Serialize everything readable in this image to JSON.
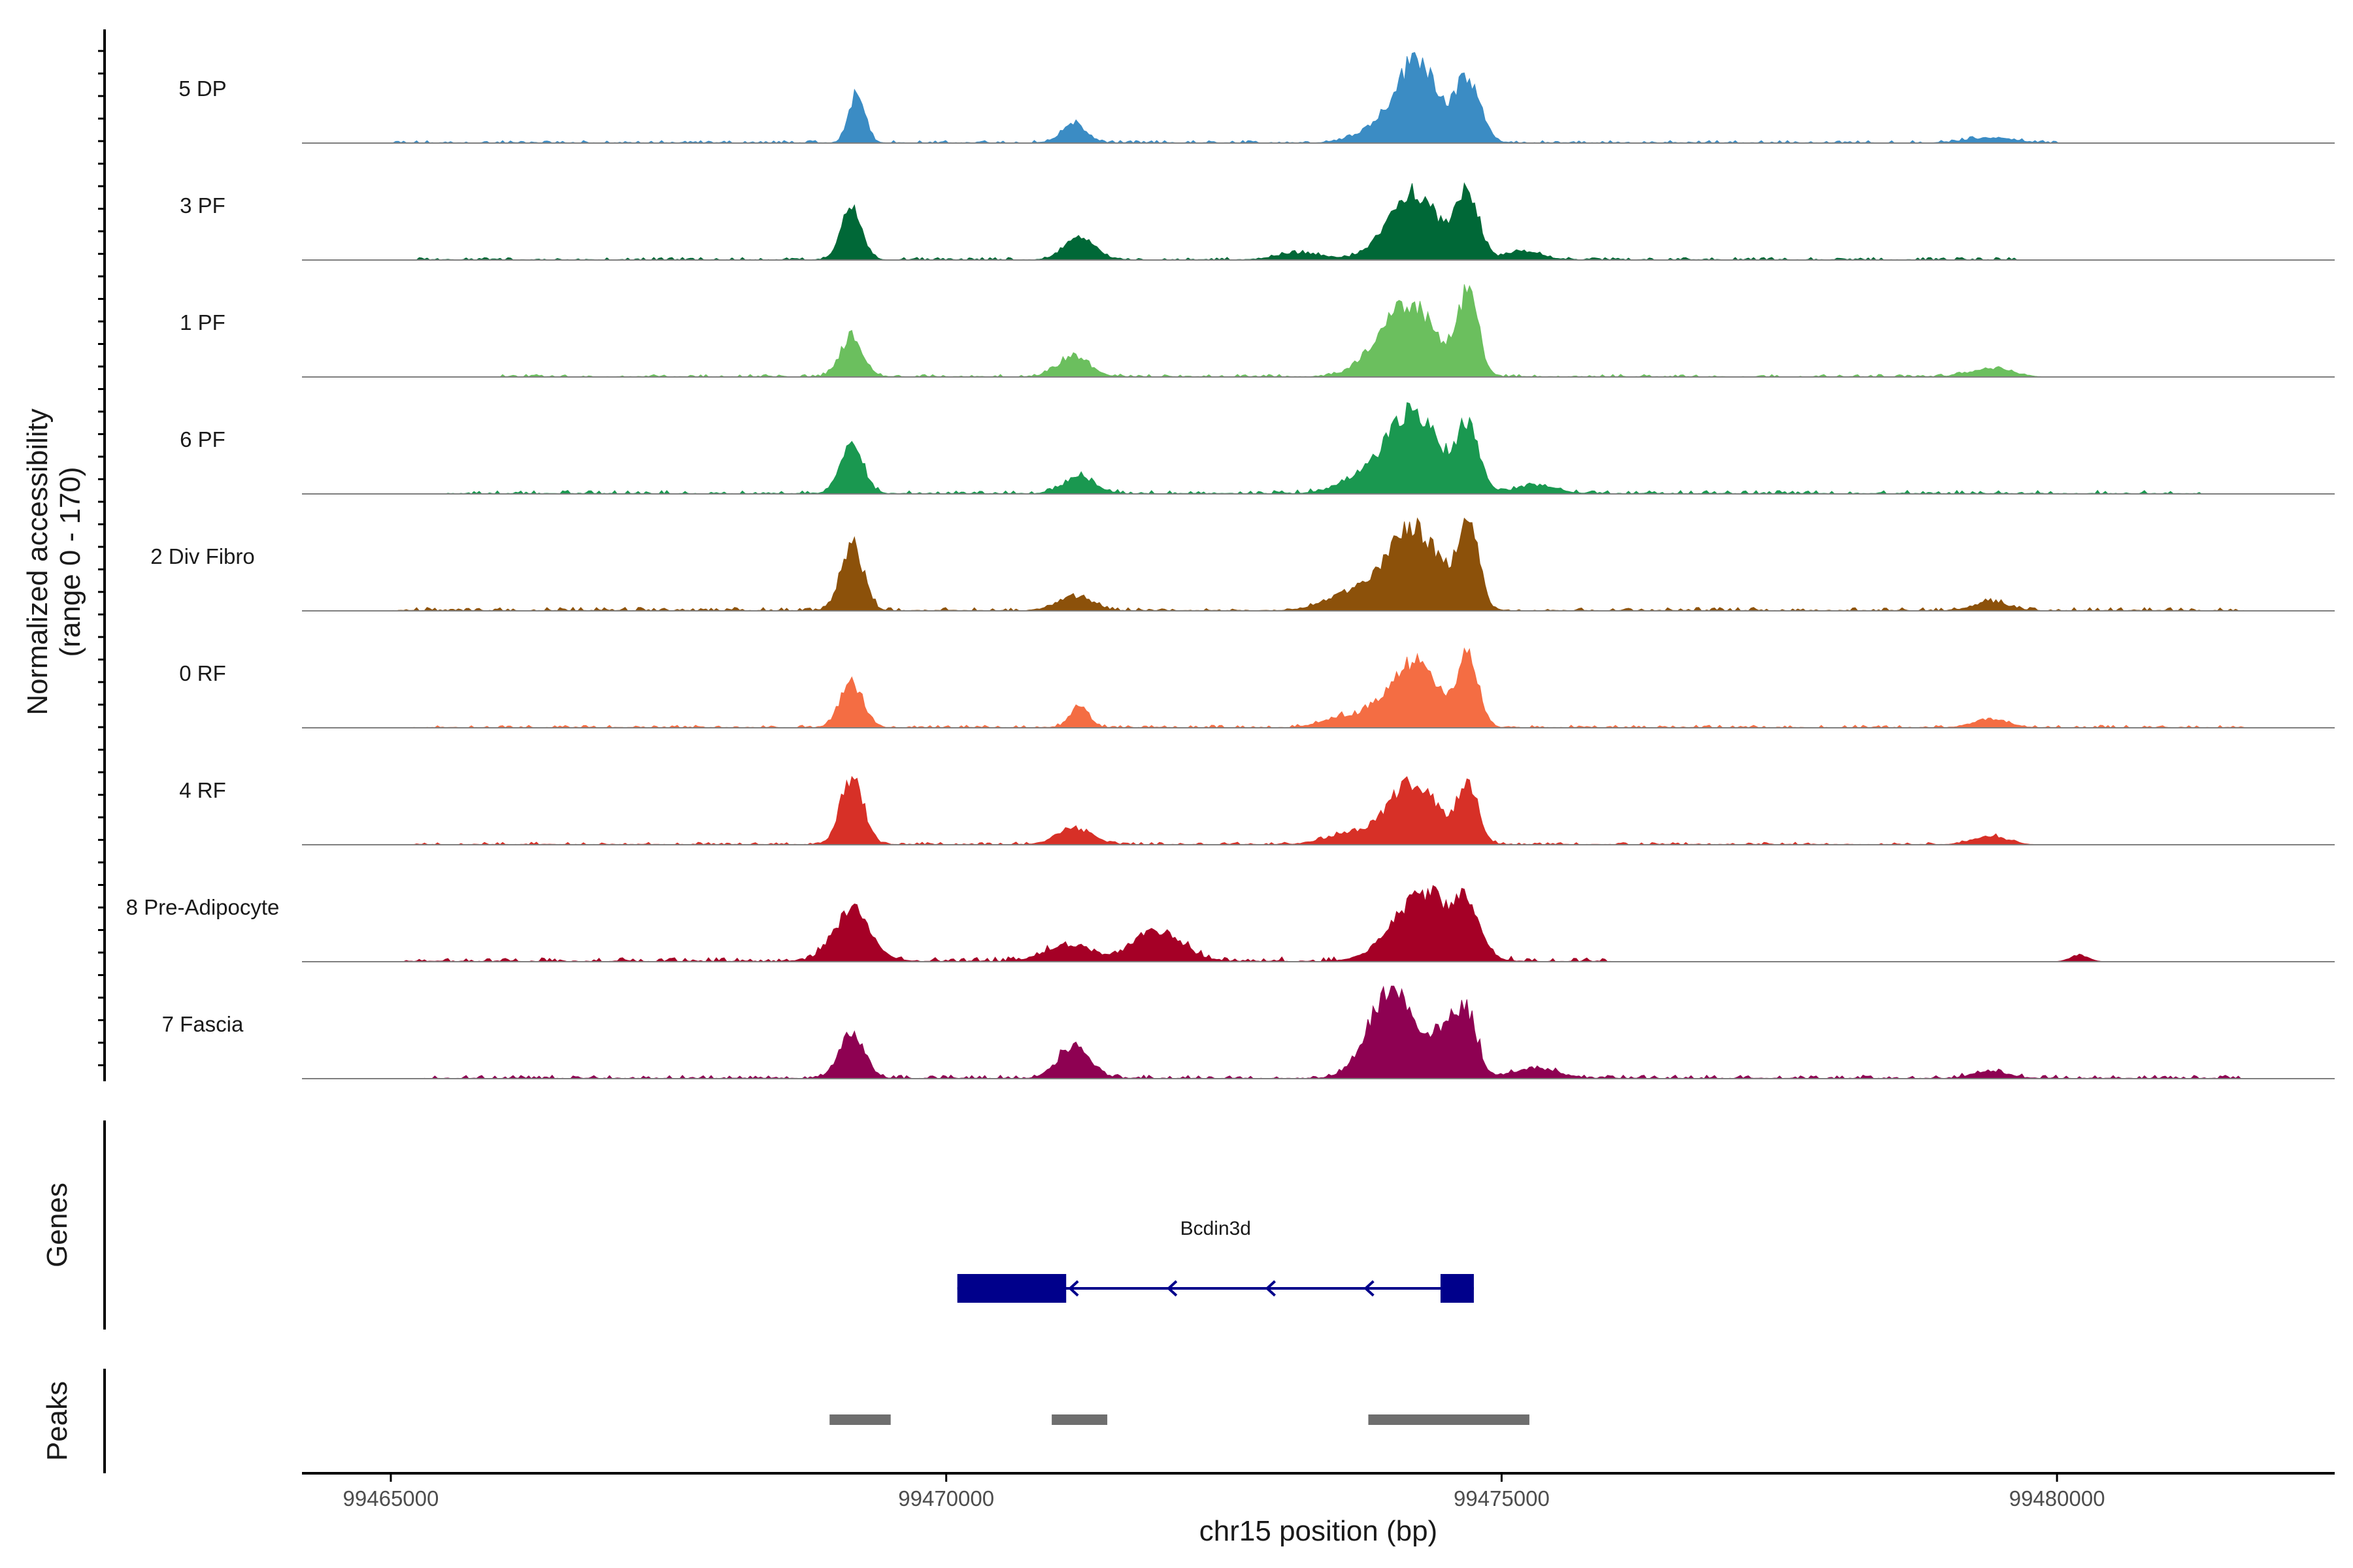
{
  "chart_data": {
    "type": "area",
    "title": "",
    "xlabel": "chr15 position (bp)",
    "ylabel": "Normalized accessibility",
    "ylabel_range": "(range 0 - 170)",
    "ylim": [
      0,
      170
    ],
    "xlim": [
      99464200,
      99482500
    ],
    "x_ticks": [
      99465000,
      99470000,
      99475000,
      99480000
    ],
    "x_tick_labels": [
      "99465000",
      "99470000",
      "99475000",
      "99480000"
    ],
    "peaks_of_interest_note": "",
    "tracks": [
      {
        "name": "5 DP",
        "color": "#3B8CC4",
        "peaks": [
          [
            99469200,
            0.62,
            70
          ],
          [
            99471150,
            0.22,
            110
          ],
          [
            99474250,
            0.95,
            180
          ],
          [
            99474700,
            0.7,
            110
          ],
          [
            99473900,
            0.18,
            200
          ],
          [
            99479400,
            0.06,
            200
          ]
        ],
        "baseline": 0.03,
        "noise_range": [
          99465000,
          99480000
        ]
      },
      {
        "name": "3 PF",
        "color": "#006837",
        "peaks": [
          [
            99469150,
            0.63,
            90
          ],
          [
            99471200,
            0.28,
            130
          ],
          [
            99474200,
            0.8,
            220
          ],
          [
            99474700,
            0.75,
            100
          ],
          [
            99473200,
            0.08,
            200
          ],
          [
            99475200,
            0.1,
            150
          ]
        ],
        "baseline": 0.03,
        "noise_range": [
          99465200,
          99479700
        ]
      },
      {
        "name": "1 PF",
        "color": "#6BBF5E",
        "peaks": [
          [
            99469150,
            0.48,
            100
          ],
          [
            99471150,
            0.24,
            140
          ],
          [
            99474200,
            0.78,
            220
          ],
          [
            99474700,
            0.95,
            90
          ],
          [
            99473900,
            0.2,
            200
          ],
          [
            99479400,
            0.1,
            180
          ]
        ],
        "baseline": 0.03,
        "noise_range": [
          99466000,
          99479800
        ]
      },
      {
        "name": "6 PF",
        "color": "#1A9850",
        "peaks": [
          [
            99469150,
            0.6,
            100
          ],
          [
            99471200,
            0.2,
            140
          ],
          [
            99474200,
            0.95,
            230
          ],
          [
            99474700,
            0.75,
            100
          ],
          [
            99473700,
            0.15,
            200
          ],
          [
            99475300,
            0.1,
            180
          ]
        ],
        "baseline": 0.04,
        "noise_range": [
          99465500,
          99481300
        ]
      },
      {
        "name": "2 Div Fibro",
        "color": "#8C510A",
        "peaks": [
          [
            99469150,
            0.78,
            100
          ],
          [
            99471150,
            0.16,
            150
          ],
          [
            99474200,
            0.98,
            240
          ],
          [
            99474700,
            1.0,
            90
          ],
          [
            99473600,
            0.18,
            200
          ],
          [
            99479400,
            0.1,
            150
          ]
        ],
        "baseline": 0.04,
        "noise_range": [
          99465000,
          99481700
        ]
      },
      {
        "name": "0 RF",
        "color": "#F46D43",
        "peaks": [
          [
            99469150,
            0.52,
            100
          ],
          [
            99471200,
            0.26,
            80
          ],
          [
            99474200,
            0.75,
            230
          ],
          [
            99474700,
            0.78,
            90
          ],
          [
            99473600,
            0.12,
            200
          ],
          [
            99479400,
            0.1,
            150
          ]
        ],
        "baseline": 0.03,
        "noise_range": [
          99465200,
          99481700
        ]
      },
      {
        "name": "4 RF",
        "color": "#D73027",
        "peaks": [
          [
            99469150,
            0.8,
            100
          ],
          [
            99471150,
            0.2,
            150
          ],
          [
            99474200,
            0.7,
            230
          ],
          [
            99474700,
            0.68,
            90
          ],
          [
            99473600,
            0.12,
            200
          ],
          [
            99479400,
            0.1,
            150
          ]
        ],
        "baseline": 0.03,
        "noise_range": [
          99465200,
          99479700
        ]
      },
      {
        "name": "8 Pre-Adipocyte",
        "color": "#A50026",
        "peaks": [
          [
            99469150,
            0.6,
            160
          ],
          [
            99471100,
            0.2,
            200
          ],
          [
            99471900,
            0.35,
            220
          ],
          [
            99474300,
            0.8,
            260
          ],
          [
            99474700,
            0.5,
            110
          ],
          [
            99480200,
            0.08,
            80
          ]
        ],
        "baseline": 0.05,
        "noise_range": [
          99465100,
          99476000
        ]
      },
      {
        "name": "7 Fascia",
        "color": "#8E0152",
        "peaks": [
          [
            99469150,
            0.55,
            110
          ],
          [
            99471150,
            0.38,
            140
          ],
          [
            99474000,
            1.0,
            200
          ],
          [
            99474500,
            0.55,
            140
          ],
          [
            99474700,
            0.6,
            90
          ],
          [
            99475300,
            0.12,
            200
          ],
          [
            99479400,
            0.08,
            150
          ]
        ],
        "baseline": 0.04,
        "noise_range": [
          99465300,
          99481700
        ]
      }
    ],
    "genes": {
      "title": "Genes",
      "gene_name": "Bcdin3d",
      "strand": "-",
      "color": "#00008B",
      "start": 99470100,
      "end": 99474750,
      "exons": [
        [
          99470100,
          99471080
        ],
        [
          99474450,
          99474750
        ]
      ]
    },
    "peaks_track": {
      "title": "Peaks",
      "color": "#6E6E6E",
      "regions": [
        [
          99468950,
          99469500
        ],
        [
          99470950,
          99471450
        ],
        [
          99473800,
          99475250
        ]
      ]
    }
  }
}
